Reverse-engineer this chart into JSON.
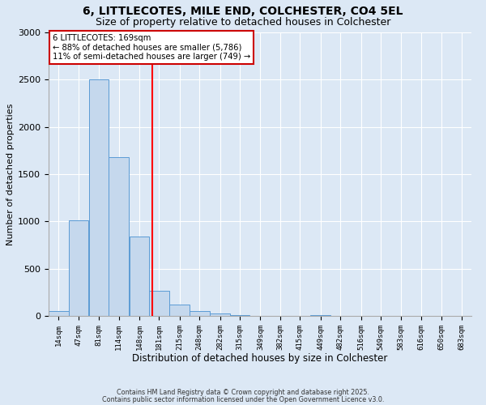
{
  "title": "6, LITTLECOTES, MILE END, COLCHESTER, CO4 5EL",
  "subtitle": "Size of property relative to detached houses in Colchester",
  "xlabel": "Distribution of detached houses by size in Colchester",
  "ylabel": "Number of detached properties",
  "categories": [
    "14sqm",
    "47sqm",
    "81sqm",
    "114sqm",
    "148sqm",
    "181sqm",
    "215sqm",
    "248sqm",
    "282sqm",
    "315sqm",
    "349sqm",
    "382sqm",
    "415sqm",
    "449sqm",
    "482sqm",
    "516sqm",
    "549sqm",
    "583sqm",
    "616sqm",
    "650sqm",
    "683sqm"
  ],
  "values": [
    50,
    1010,
    2500,
    1680,
    840,
    270,
    120,
    55,
    25,
    5,
    0,
    0,
    0,
    5,
    0,
    0,
    0,
    0,
    0,
    0,
    0
  ],
  "bar_color": "#c5d8ed",
  "bar_edge_color": "#5b9bd5",
  "vline_x": 169,
  "vline_color": "red",
  "annotation_title": "6 LITTLECOTES: 169sqm",
  "annotation_line1": "← 88% of detached houses are smaller (5,786)",
  "annotation_line2": "11% of semi-detached houses are larger (749) →",
  "annotation_box_color": "white",
  "annotation_box_edge": "#cc0000",
  "ylim": [
    0,
    3000
  ],
  "yticks": [
    0,
    500,
    1000,
    1500,
    2000,
    2500,
    3000
  ],
  "background_color": "#dce8f5",
  "plot_background": "#dce8f5",
  "footnote1": "Contains HM Land Registry data © Crown copyright and database right 2025.",
  "footnote2": "Contains public sector information licensed under the Open Government Licence v3.0.",
  "title_fontsize": 10,
  "subtitle_fontsize": 9,
  "xlabel_fontsize": 8.5,
  "ylabel_fontsize": 8,
  "bin_width": 33
}
